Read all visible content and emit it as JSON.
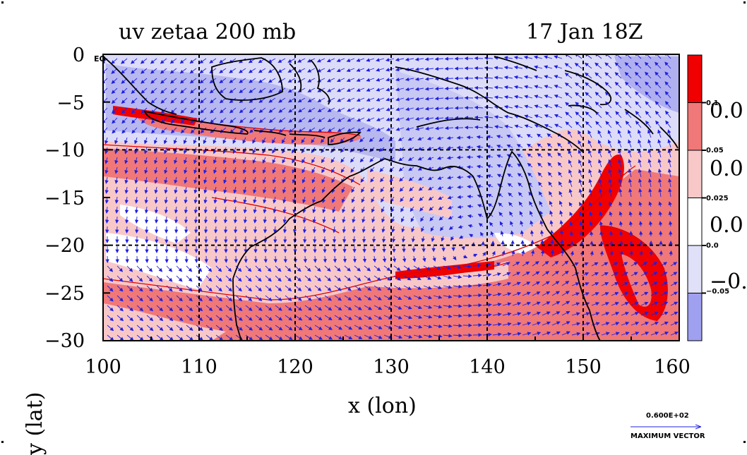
{
  "title": {
    "left": "uv zetaa 200 mb",
    "right": "17 Jan 18Z"
  },
  "map": {
    "x_label": "x (lon)",
    "y_label": "y (lat)",
    "x_ticks": [
      "100",
      "110",
      "120",
      "130",
      "140",
      "150",
      "160"
    ],
    "y_ticks": [
      "0",
      "−5",
      "−10",
      "−15",
      "−20",
      "−25",
      "−30"
    ],
    "equator_label": "EQ",
    "lon_range": [
      100,
      160
    ],
    "lat_range": [
      -30,
      0
    ],
    "gridlines": "dashed at every 10° lon and 10° lat",
    "variable": "absolute vorticity (zetaa) with wind vectors (uv) at 200 mb"
  },
  "colorbar": {
    "small_labels": [
      "0.1",
      "0.05",
      "0.025",
      "0.0",
      "−0.05"
    ],
    "big_labels": [
      "0.0",
      "0.0",
      "0.0",
      "−0."
    ],
    "colors": [
      "#f00000",
      "#f07878",
      "#f8c8c8",
      "#ffffff",
      "#e0e0f8",
      "#a0a0f0"
    ]
  },
  "vector_legend": {
    "value": "0.600E+02",
    "label": "MAXIMUM VECTOR"
  },
  "colors": {
    "vectors": "#2020e0",
    "coast": "#000000",
    "contour": "#e00000"
  }
}
